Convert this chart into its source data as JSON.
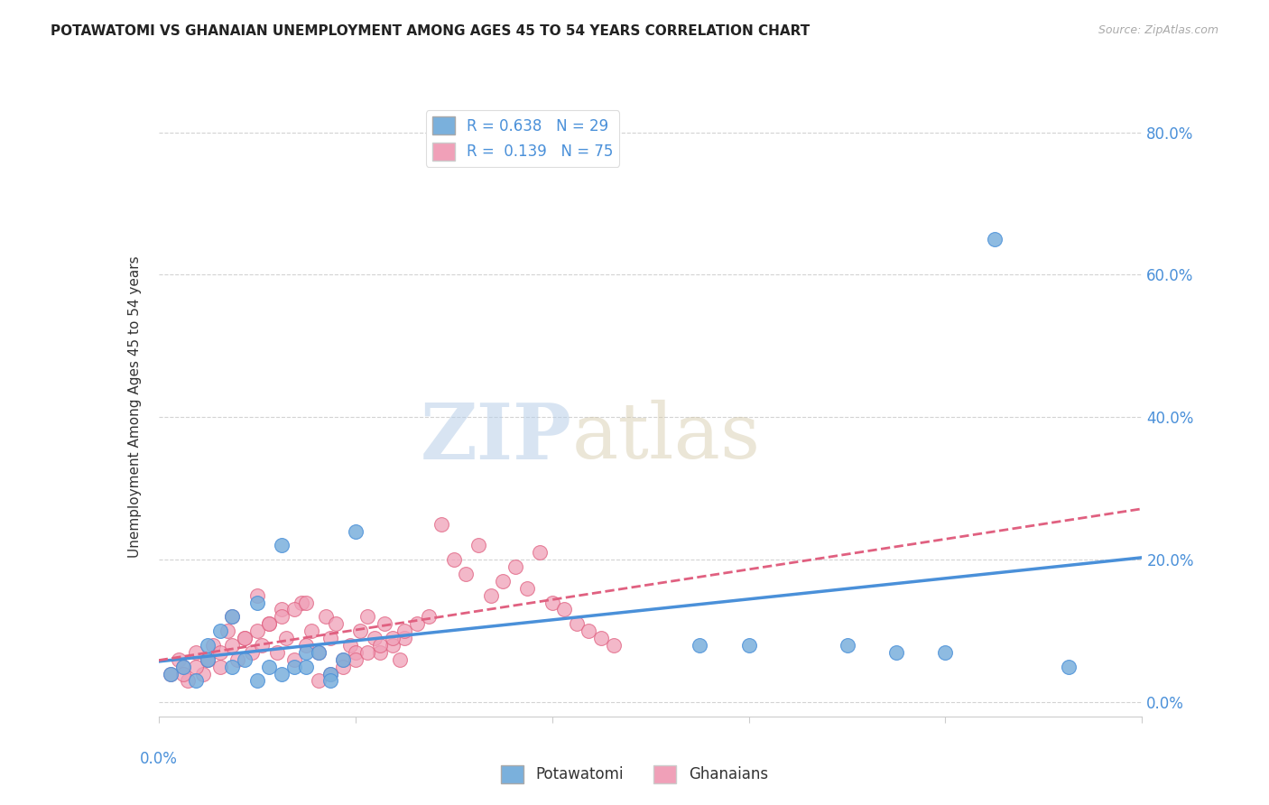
{
  "title": "POTAWATOMI VS GHANAIAN UNEMPLOYMENT AMONG AGES 45 TO 54 YEARS CORRELATION CHART",
  "source": "Source: ZipAtlas.com",
  "ylabel": "Unemployment Among Ages 45 to 54 years",
  "watermark_zip": "ZIP",
  "watermark_atlas": "atlas",
  "xlim": [
    0.0,
    0.4
  ],
  "ylim": [
    -0.02,
    0.85
  ],
  "yticks": [
    0.0,
    0.2,
    0.4,
    0.6,
    0.8
  ],
  "ytick_labels": [
    "0.0%",
    "20.0%",
    "40.0%",
    "60.0%",
    "80.0%"
  ],
  "potawatomi_color": "#7ab0dc",
  "ghanaian_color": "#f0a0b8",
  "potawatomi_line_color": "#4a90d9",
  "ghanaian_line_color": "#e06080",
  "R_potawatomi": 0.638,
  "N_potawatomi": 29,
  "R_ghanaian": 0.139,
  "N_ghanaian": 75,
  "potawatomi_scatter_x": [
    0.005,
    0.01,
    0.015,
    0.02,
    0.025,
    0.03,
    0.035,
    0.04,
    0.045,
    0.05,
    0.055,
    0.06,
    0.065,
    0.07,
    0.075,
    0.02,
    0.03,
    0.04,
    0.05,
    0.06,
    0.07,
    0.08,
    0.22,
    0.24,
    0.28,
    0.3,
    0.32,
    0.34,
    0.37
  ],
  "potawatomi_scatter_y": [
    0.04,
    0.05,
    0.03,
    0.08,
    0.1,
    0.12,
    0.06,
    0.14,
    0.05,
    0.22,
    0.05,
    0.07,
    0.07,
    0.04,
    0.06,
    0.06,
    0.05,
    0.03,
    0.04,
    0.05,
    0.03,
    0.24,
    0.08,
    0.08,
    0.08,
    0.07,
    0.07,
    0.65,
    0.05
  ],
  "ghanaian_scatter_x": [
    0.005,
    0.008,
    0.01,
    0.012,
    0.015,
    0.018,
    0.02,
    0.022,
    0.025,
    0.028,
    0.03,
    0.032,
    0.035,
    0.038,
    0.04,
    0.042,
    0.045,
    0.048,
    0.05,
    0.052,
    0.055,
    0.058,
    0.06,
    0.062,
    0.065,
    0.068,
    0.07,
    0.072,
    0.075,
    0.078,
    0.08,
    0.082,
    0.085,
    0.088,
    0.09,
    0.092,
    0.095,
    0.098,
    0.1,
    0.01,
    0.015,
    0.02,
    0.025,
    0.03,
    0.035,
    0.04,
    0.045,
    0.05,
    0.055,
    0.06,
    0.065,
    0.07,
    0.075,
    0.08,
    0.085,
    0.09,
    0.095,
    0.1,
    0.105,
    0.11,
    0.115,
    0.12,
    0.125,
    0.13,
    0.135,
    0.14,
    0.145,
    0.15,
    0.155,
    0.16,
    0.165,
    0.17,
    0.175,
    0.18,
    0.185
  ],
  "ghanaian_scatter_y": [
    0.04,
    0.06,
    0.05,
    0.03,
    0.07,
    0.04,
    0.06,
    0.08,
    0.05,
    0.1,
    0.12,
    0.06,
    0.09,
    0.07,
    0.15,
    0.08,
    0.11,
    0.07,
    0.13,
    0.09,
    0.06,
    0.14,
    0.08,
    0.1,
    0.07,
    0.12,
    0.09,
    0.11,
    0.06,
    0.08,
    0.07,
    0.1,
    0.12,
    0.09,
    0.07,
    0.11,
    0.08,
    0.06,
    0.09,
    0.04,
    0.05,
    0.06,
    0.07,
    0.08,
    0.09,
    0.1,
    0.11,
    0.12,
    0.13,
    0.14,
    0.03,
    0.04,
    0.05,
    0.06,
    0.07,
    0.08,
    0.09,
    0.1,
    0.11,
    0.12,
    0.25,
    0.2,
    0.18,
    0.22,
    0.15,
    0.17,
    0.19,
    0.16,
    0.21,
    0.14,
    0.13,
    0.11,
    0.1,
    0.09,
    0.08
  ]
}
